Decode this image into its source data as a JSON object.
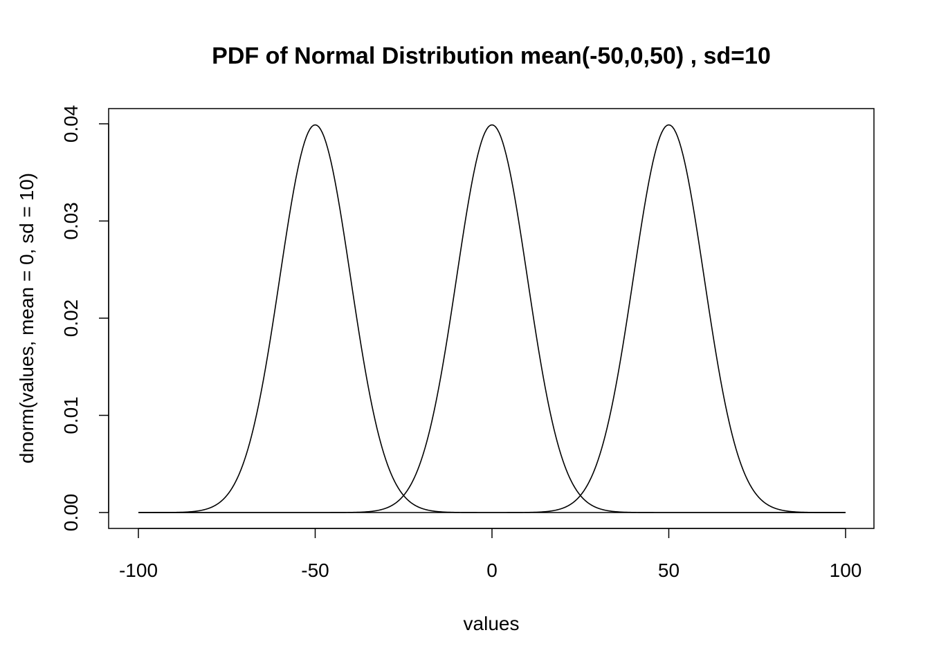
{
  "chart_data": {
    "type": "line",
    "title": "PDF of Normal Distribution mean(-50,0,50) , sd=10",
    "xlabel": "values",
    "ylabel": "dnorm(values, mean = 0, sd = 10)",
    "xlim": [
      -100,
      100
    ],
    "ylim": [
      0,
      0.04
    ],
    "x_ticks": [
      -100,
      -50,
      0,
      50,
      100
    ],
    "x_tick_labels": [
      "-100",
      "-50",
      "0",
      "50",
      "100"
    ],
    "y_ticks": [
      0,
      0.01,
      0.02,
      0.03,
      0.04
    ],
    "y_tick_labels": [
      "0.00",
      "0.01",
      "0.02",
      "0.03",
      "0.04"
    ],
    "grid": false,
    "legend": "none",
    "line_color": "#000000",
    "series": [
      {
        "mean": -50,
        "sd": 10,
        "x_range": [
          -100,
          100
        ],
        "peak": 0.0399
      },
      {
        "mean": 0,
        "sd": 10,
        "x_range": [
          -100,
          100
        ],
        "peak": 0.0399
      },
      {
        "mean": 50,
        "sd": 10,
        "x_range": [
          -100,
          100
        ],
        "peak": 0.0399
      }
    ]
  }
}
